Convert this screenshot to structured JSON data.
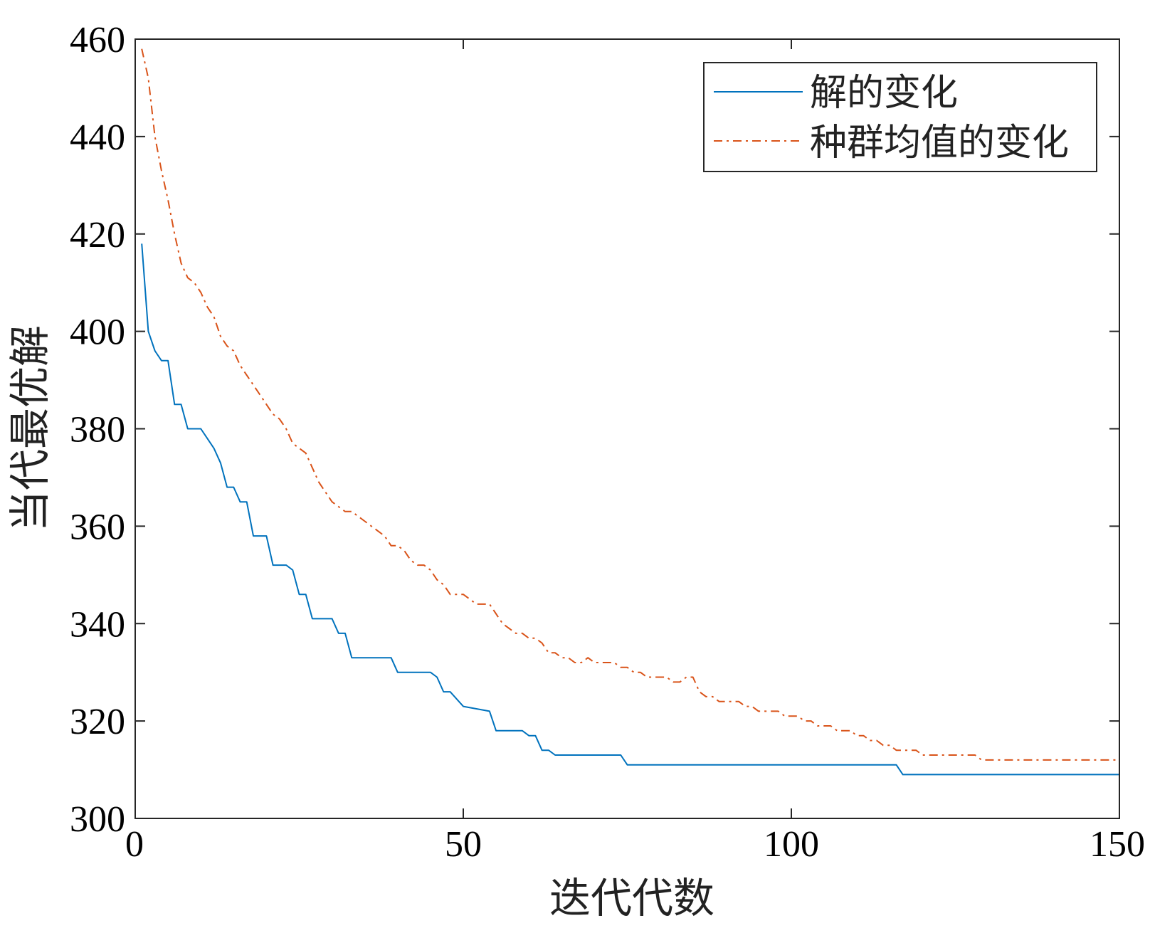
{
  "chart_data": {
    "type": "line",
    "title": "",
    "xlabel": "迭代代数",
    "ylabel": "当代最优解",
    "xlim": [
      0,
      150
    ],
    "ylim": [
      300,
      460
    ],
    "xticks": [
      0,
      50,
      100,
      150
    ],
    "yticks": [
      300,
      320,
      340,
      360,
      380,
      400,
      420,
      440,
      460
    ],
    "xtick_labels": [
      "0",
      "50",
      "100",
      "150"
    ],
    "ytick_labels": [
      "300",
      "320",
      "340",
      "360",
      "380",
      "400",
      "420",
      "440",
      "460"
    ],
    "grid": false,
    "legend_position": "top-right",
    "series": [
      {
        "name": "解的变化",
        "color": "#0072BD",
        "style": "solid",
        "points": [
          [
            1,
            418
          ],
          [
            2,
            400
          ],
          [
            3,
            396
          ],
          [
            4,
            394
          ],
          [
            5,
            394
          ],
          [
            6,
            385
          ],
          [
            7,
            385
          ],
          [
            8,
            380
          ],
          [
            10,
            380
          ],
          [
            11,
            378
          ],
          [
            12,
            376
          ],
          [
            13,
            373
          ],
          [
            14,
            368
          ],
          [
            15,
            368
          ],
          [
            16,
            365
          ],
          [
            17,
            365
          ],
          [
            18,
            358
          ],
          [
            20,
            358
          ],
          [
            21,
            352
          ],
          [
            23,
            352
          ],
          [
            24,
            351
          ],
          [
            25,
            346
          ],
          [
            26,
            346
          ],
          [
            27,
            341
          ],
          [
            30,
            341
          ],
          [
            31,
            338
          ],
          [
            32,
            338
          ],
          [
            33,
            333
          ],
          [
            39,
            333
          ],
          [
            40,
            330
          ],
          [
            45,
            330
          ],
          [
            46,
            329
          ],
          [
            47,
            326
          ],
          [
            48,
            326
          ],
          [
            50,
            323
          ],
          [
            54,
            322
          ],
          [
            55,
            318
          ],
          [
            59,
            318
          ],
          [
            60,
            317
          ],
          [
            61,
            317
          ],
          [
            62,
            314
          ],
          [
            63,
            314
          ],
          [
            64,
            313
          ],
          [
            74,
            313
          ],
          [
            75,
            311
          ],
          [
            116,
            311
          ],
          [
            117,
            309
          ],
          [
            150,
            309
          ]
        ]
      },
      {
        "name": "种群均值的变化",
        "color": "#D95319",
        "style": "dashdot",
        "points": [
          [
            1,
            458
          ],
          [
            2,
            452
          ],
          [
            3,
            440
          ],
          [
            4,
            433
          ],
          [
            5,
            427
          ],
          [
            6,
            420
          ],
          [
            7,
            414
          ],
          [
            8,
            411
          ],
          [
            9,
            410
          ],
          [
            10,
            408
          ],
          [
            11,
            405
          ],
          [
            12,
            403
          ],
          [
            13,
            399
          ],
          [
            14,
            397
          ],
          [
            15,
            396
          ],
          [
            16,
            393
          ],
          [
            17,
            391
          ],
          [
            18,
            389
          ],
          [
            19,
            387
          ],
          [
            20,
            385
          ],
          [
            21,
            383
          ],
          [
            22,
            382
          ],
          [
            23,
            380
          ],
          [
            24,
            377
          ],
          [
            25,
            376
          ],
          [
            26,
            375
          ],
          [
            27,
            372
          ],
          [
            28,
            369
          ],
          [
            29,
            367
          ],
          [
            30,
            365
          ],
          [
            31,
            364
          ],
          [
            32,
            363
          ],
          [
            33,
            363
          ],
          [
            34,
            362
          ],
          [
            35,
            361
          ],
          [
            36,
            360
          ],
          [
            37,
            359
          ],
          [
            38,
            358
          ],
          [
            39,
            356
          ],
          [
            40,
            356
          ],
          [
            41,
            355
          ],
          [
            42,
            353
          ],
          [
            43,
            352
          ],
          [
            44,
            352
          ],
          [
            45,
            351
          ],
          [
            46,
            349
          ],
          [
            47,
            348
          ],
          [
            48,
            346
          ],
          [
            49,
            346
          ],
          [
            50,
            346
          ],
          [
            51,
            345
          ],
          [
            52,
            344
          ],
          [
            53,
            344
          ],
          [
            54,
            344
          ],
          [
            55,
            342
          ],
          [
            56,
            340
          ],
          [
            57,
            339
          ],
          [
            58,
            338
          ],
          [
            59,
            338
          ],
          [
            60,
            337
          ],
          [
            61,
            337
          ],
          [
            62,
            336
          ],
          [
            63,
            334
          ],
          [
            64,
            334
          ],
          [
            65,
            333
          ],
          [
            66,
            333
          ],
          [
            67,
            332
          ],
          [
            68,
            332
          ],
          [
            69,
            333
          ],
          [
            70,
            332
          ],
          [
            71,
            332
          ],
          [
            72,
            332
          ],
          [
            73,
            332
          ],
          [
            74,
            331
          ],
          [
            75,
            331
          ],
          [
            76,
            330
          ],
          [
            77,
            330
          ],
          [
            78,
            329
          ],
          [
            79,
            329
          ],
          [
            80,
            329
          ],
          [
            81,
            329
          ],
          [
            82,
            328
          ],
          [
            83,
            328
          ],
          [
            84,
            329
          ],
          [
            85,
            329
          ],
          [
            86,
            326
          ],
          [
            87,
            325
          ],
          [
            88,
            325
          ],
          [
            89,
            324
          ],
          [
            90,
            324
          ],
          [
            91,
            324
          ],
          [
            92,
            324
          ],
          [
            93,
            323
          ],
          [
            94,
            323
          ],
          [
            95,
            322
          ],
          [
            96,
            322
          ],
          [
            97,
            322
          ],
          [
            98,
            322
          ],
          [
            99,
            321
          ],
          [
            100,
            321
          ],
          [
            101,
            321
          ],
          [
            102,
            320
          ],
          [
            103,
            320
          ],
          [
            104,
            319
          ],
          [
            105,
            319
          ],
          [
            106,
            319
          ],
          [
            107,
            318
          ],
          [
            108,
            318
          ],
          [
            109,
            318
          ],
          [
            110,
            317
          ],
          [
            111,
            317
          ],
          [
            112,
            316
          ],
          [
            113,
            316
          ],
          [
            114,
            315
          ],
          [
            115,
            315
          ],
          [
            116,
            314
          ],
          [
            117,
            314
          ],
          [
            118,
            314
          ],
          [
            119,
            314
          ],
          [
            120,
            313
          ],
          [
            121,
            313
          ],
          [
            122,
            313
          ],
          [
            123,
            313
          ],
          [
            124,
            313
          ],
          [
            125,
            313
          ],
          [
            126,
            313
          ],
          [
            127,
            313
          ],
          [
            128,
            313
          ],
          [
            129,
            312
          ],
          [
            130,
            312
          ],
          [
            131,
            312
          ],
          [
            132,
            312
          ],
          [
            133,
            312
          ],
          [
            134,
            312
          ],
          [
            135,
            312
          ],
          [
            136,
            312
          ],
          [
            137,
            312
          ],
          [
            138,
            312
          ],
          [
            139,
            312
          ],
          [
            140,
            312
          ],
          [
            141,
            312
          ],
          [
            142,
            312
          ],
          [
            143,
            312
          ],
          [
            144,
            312
          ],
          [
            145,
            312
          ],
          [
            146,
            312
          ],
          [
            147,
            312
          ],
          [
            148,
            312
          ],
          [
            149,
            312
          ],
          [
            150,
            312
          ]
        ]
      }
    ]
  }
}
